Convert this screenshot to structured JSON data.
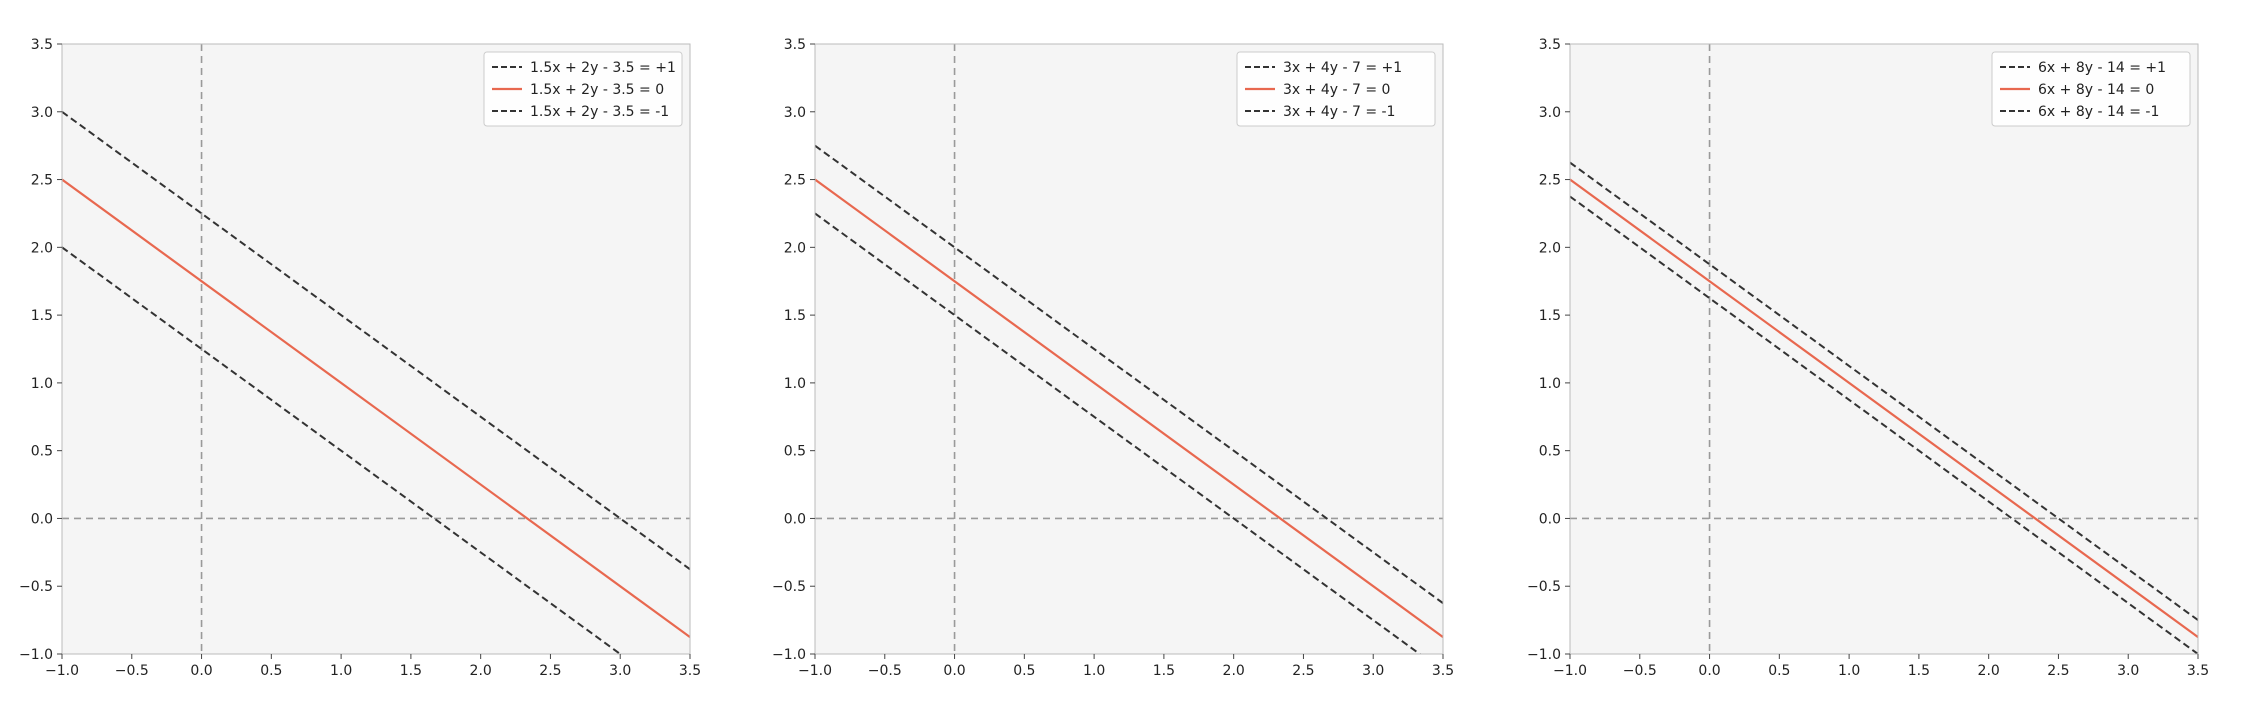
{
  "colors": {
    "background": "#f5f5f5",
    "margin_line": "#333333",
    "decision_line": "#e8684f",
    "axis_ref_line": "#9a9a9a",
    "frame": "#bbbbbb"
  },
  "chart_data": [
    {
      "type": "line",
      "xlim": [
        -1.0,
        3.5
      ],
      "ylim": [
        -1.0,
        3.5
      ],
      "x_ticks": [
        "−1.0",
        "−0.5",
        "0.0",
        "0.5",
        "1.0",
        "1.5",
        "2.0",
        "2.5",
        "3.0",
        "3.5"
      ],
      "y_ticks": [
        "−1.0",
        "−0.5",
        "0.0",
        "0.5",
        "1.0",
        "1.5",
        "2.0",
        "2.5",
        "3.0",
        "3.5"
      ],
      "reference_lines": {
        "x": 0,
        "y": 0
      },
      "legend_position": "top-right",
      "series": [
        {
          "name": "1.5x + 2y - 3.5 = +1",
          "style": "dashed",
          "a": 1.5,
          "b": 2,
          "c": -3.5,
          "level": 1
        },
        {
          "name": "1.5x + 2y - 3.5 =   0",
          "style": "solid",
          "a": 1.5,
          "b": 2,
          "c": -3.5,
          "level": 0
        },
        {
          "name": "1.5x + 2y - 3.5 =  -1",
          "style": "dashed",
          "a": 1.5,
          "b": 2,
          "c": -3.5,
          "level": -1
        }
      ]
    },
    {
      "type": "line",
      "xlim": [
        -1.0,
        3.5
      ],
      "ylim": [
        -1.0,
        3.5
      ],
      "x_ticks": [
        "−1.0",
        "−0.5",
        "0.0",
        "0.5",
        "1.0",
        "1.5",
        "2.0",
        "2.5",
        "3.0",
        "3.5"
      ],
      "y_ticks": [
        "−1.0",
        "−0.5",
        "0.0",
        "0.5",
        "1.0",
        "1.5",
        "2.0",
        "2.5",
        "3.0",
        "3.5"
      ],
      "reference_lines": {
        "x": 0,
        "y": 0
      },
      "legend_position": "top-right",
      "series": [
        {
          "name": "3x + 4y - 7 = +1",
          "style": "dashed",
          "a": 3,
          "b": 4,
          "c": -7,
          "level": 1
        },
        {
          "name": "3x + 4y - 7 =   0",
          "style": "solid",
          "a": 3,
          "b": 4,
          "c": -7,
          "level": 0
        },
        {
          "name": "3x + 4y - 7 =  -1",
          "style": "dashed",
          "a": 3,
          "b": 4,
          "c": -7,
          "level": -1
        }
      ]
    },
    {
      "type": "line",
      "xlim": [
        -1.0,
        3.5
      ],
      "ylim": [
        -1.0,
        3.5
      ],
      "x_ticks": [
        "−1.0",
        "−0.5",
        "0.0",
        "0.5",
        "1.0",
        "1.5",
        "2.0",
        "2.5",
        "3.0",
        "3.5"
      ],
      "y_ticks": [
        "−1.0",
        "−0.5",
        "0.0",
        "0.5",
        "1.0",
        "1.5",
        "2.0",
        "2.5",
        "3.0",
        "3.5"
      ],
      "reference_lines": {
        "x": 0,
        "y": 0
      },
      "legend_position": "top-right",
      "series": [
        {
          "name": "6x + 8y - 14 = +1",
          "style": "dashed",
          "a": 6,
          "b": 8,
          "c": -14,
          "level": 1
        },
        {
          "name": "6x + 8y - 14 =   0",
          "style": "solid",
          "a": 6,
          "b": 8,
          "c": -14,
          "level": 0
        },
        {
          "name": "6x + 8y - 14 =  -1",
          "style": "dashed",
          "a": 6,
          "b": 8,
          "c": -14,
          "level": -1
        }
      ]
    }
  ]
}
